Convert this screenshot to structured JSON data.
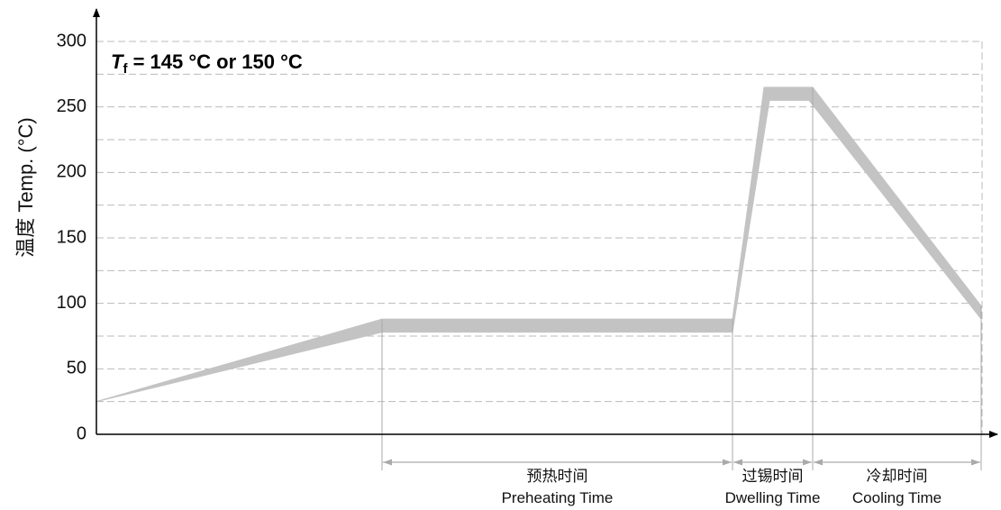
{
  "chart_data": {
    "type": "area",
    "ylabel": "温度 Temp. (°C)",
    "ylim": [
      0,
      300
    ],
    "yticks": [
      "0",
      "50",
      "100",
      "150",
      "200",
      "250",
      "300"
    ],
    "grid": true,
    "annotation": {
      "symbol": "T",
      "subscript": "f",
      "text": " = 145 °C or 150 °C"
    },
    "series": [
      {
        "upper": [
          {
            "x": 0,
            "y": 25
          },
          {
            "x": 317,
            "y": 88
          },
          {
            "x": 706,
            "y": 88
          },
          {
            "x": 741,
            "y": 265
          },
          {
            "x": 795,
            "y": 265
          },
          {
            "x": 982,
            "y": 98
          }
        ],
        "lower": [
          {
            "x": 0,
            "y": 25
          },
          {
            "x": 317,
            "y": 78
          },
          {
            "x": 706,
            "y": 78
          },
          {
            "x": 747,
            "y": 255
          },
          {
            "x": 791,
            "y": 255
          },
          {
            "x": 982,
            "y": 88
          }
        ]
      }
    ],
    "phases": [
      {
        "cn": "预热时间",
        "en": "Preheating Time",
        "start": 317,
        "end": 706
      },
      {
        "cn": "过锡时间",
        "en": "Dwelling Time",
        "start": 706,
        "end": 795
      },
      {
        "cn": "冷却时间",
        "en": "Cooling Time",
        "start": 795,
        "end": 982
      }
    ],
    "colors": {
      "band": "#c3c3c3",
      "grid": "#bbbbbb",
      "axis": "#000000",
      "markers": "#aaaaaa"
    }
  }
}
